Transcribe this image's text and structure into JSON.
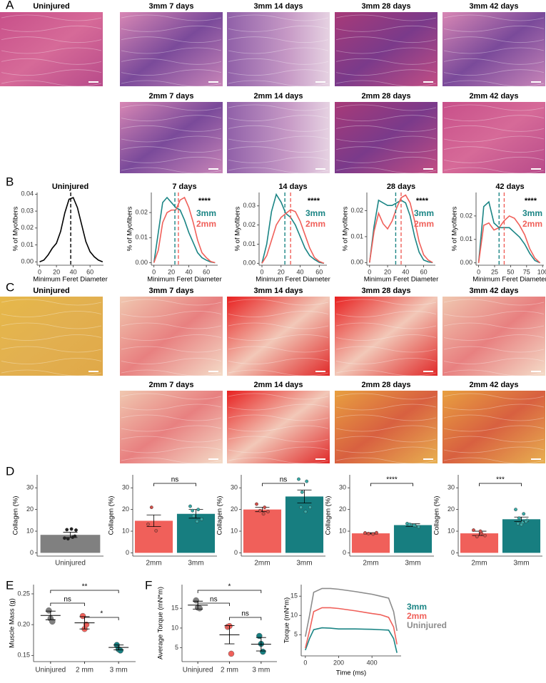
{
  "panel_labels": [
    "A",
    "B",
    "C",
    "D",
    "E",
    "F"
  ],
  "he_images": {
    "titles": [
      "Uninjured",
      "3mm 7 days",
      "3mm 14 days",
      "3mm 28 days",
      "3mm 42 days",
      "2mm 7 days",
      "2mm 14 days",
      "2mm 28 days",
      "2mm 42 days"
    ]
  },
  "ps_images": {
    "titles": [
      "Uninjured",
      "3mm 7 days",
      "3mm 14 days",
      "3mm 28 days",
      "3mm 42 days",
      "2mm 7 days",
      "2mm 14 days",
      "2mm 28 days",
      "2mm 42 days"
    ]
  },
  "chart_data": [
    {
      "type": "density",
      "title": "Uninjured",
      "x_label": "Minimum Feret Diameter",
      "y_label": "% of Myofibers",
      "x": [
        0,
        5,
        10,
        15,
        20,
        25,
        30,
        35,
        40,
        45,
        50,
        55,
        60,
        65,
        70,
        75
      ],
      "series": [
        {
          "color": "#000000",
          "values": [
            0,
            0.001,
            0.004,
            0.008,
            0.011,
            0.018,
            0.029,
            0.037,
            0.038,
            0.032,
            0.022,
            0.012,
            0.006,
            0.003,
            0.001,
            0
          ],
          "mean": 37
        }
      ],
      "xlim": [
        -3,
        76
      ],
      "xticks": [
        0,
        20,
        40,
        60
      ],
      "ylim": [
        -0.002,
        0.041
      ],
      "yticks": [
        {
          "value": 0,
          "label": "0.00"
        },
        0.01,
        0.02,
        0.03,
        0.04
      ]
    },
    {
      "type": "density",
      "title": "7 days",
      "x_label": "Minimum Feret Diameter",
      "y_label": "% of Myofibers",
      "annotation": "****",
      "x": [
        0,
        5,
        10,
        15,
        20,
        25,
        30,
        35,
        40,
        45,
        50,
        55,
        60,
        65,
        70
      ],
      "series": [
        {
          "name": "3mm",
          "color": "#1b8585",
          "values": [
            0,
            0.012,
            0.024,
            0.026,
            0.024,
            0.022,
            0.021,
            0.017,
            0.012,
            0.008,
            0.004,
            0.002,
            0.001,
            0.0003,
            0
          ],
          "mean": 24
        },
        {
          "name": "2mm",
          "color": "#f0605a",
          "values": [
            0,
            0.005,
            0.016,
            0.02,
            0.021,
            0.021,
            0.025,
            0.026,
            0.022,
            0.016,
            0.009,
            0.004,
            0.002,
            0.0005,
            0
          ],
          "mean": 28
        }
      ],
      "xlim": [
        -3,
        73
      ],
      "xticks": [
        0,
        20,
        40,
        60
      ],
      "ylim": [
        -0.001,
        0.028
      ],
      "yticks": [
        {
          "value": 0,
          "label": "0.00"
        },
        0.01,
        0.02
      ]
    },
    {
      "type": "density",
      "title": "14 days",
      "x_label": "Minimum Feret Diameter",
      "y_label": "% of Myofibers",
      "annotation": "****",
      "x": [
        0,
        5,
        10,
        15,
        20,
        25,
        30,
        35,
        40,
        45,
        50,
        55,
        60,
        65
      ],
      "series": [
        {
          "name": "3mm",
          "color": "#1b8585",
          "values": [
            0,
            0.01,
            0.027,
            0.036,
            0.032,
            0.026,
            0.024,
            0.02,
            0.014,
            0.008,
            0.004,
            0.002,
            0.0005,
            0
          ],
          "mean": 24
        },
        {
          "name": "2mm",
          "color": "#f0605a",
          "values": [
            0,
            0.004,
            0.012,
            0.02,
            0.024,
            0.026,
            0.028,
            0.027,
            0.022,
            0.015,
            0.008,
            0.003,
            0.001,
            0
          ],
          "mean": 30
        }
      ],
      "xlim": [
        -3,
        68
      ],
      "xticks": [
        0,
        20,
        40,
        60
      ],
      "ylim": [
        -0.001,
        0.037
      ],
      "yticks": [
        {
          "value": 0,
          "label": "0.00"
        },
        0.01,
        0.02,
        0.03
      ]
    },
    {
      "type": "density",
      "title": "28 days",
      "x_label": "Minimum Feret Diameter",
      "y_label": "% of Myofibers",
      "annotation": "****",
      "x": [
        0,
        5,
        10,
        15,
        20,
        25,
        30,
        35,
        40,
        45,
        50,
        55,
        60,
        65,
        70
      ],
      "series": [
        {
          "name": "3mm",
          "color": "#1b8585",
          "values": [
            0,
            0.014,
            0.024,
            0.023,
            0.022,
            0.022,
            0.023,
            0.024,
            0.023,
            0.018,
            0.01,
            0.004,
            0.001,
            0.0003,
            0
          ],
          "mean": 29
        },
        {
          "name": "2mm",
          "color": "#f0605a",
          "values": [
            0,
            0.012,
            0.019,
            0.015,
            0.013,
            0.016,
            0.021,
            0.025,
            0.026,
            0.023,
            0.016,
            0.008,
            0.003,
            0.001,
            0
          ],
          "mean": 35
        }
      ],
      "xlim": [
        -3,
        73
      ],
      "xticks": [
        0,
        20,
        40,
        60
      ],
      "ylim": [
        -0.001,
        0.027
      ],
      "yticks": [
        {
          "value": 0,
          "label": "0.00"
        },
        0.01,
        0.02
      ]
    },
    {
      "type": "density",
      "title": "42 days",
      "x_label": "Minimum Feret Diameter",
      "y_label": "% of Myofibers",
      "annotation": "****",
      "x": [
        0,
        8,
        16,
        24,
        32,
        40,
        48,
        56,
        64,
        72,
        80,
        88,
        96
      ],
      "series": [
        {
          "name": "3mm",
          "color": "#1b8585",
          "values": [
            0,
            0.024,
            0.026,
            0.017,
            0.015,
            0.015,
            0.015,
            0.013,
            0.011,
            0.008,
            0.004,
            0.001,
            0
          ],
          "mean": 32
        },
        {
          "name": "2mm",
          "color": "#f0605a",
          "values": [
            0,
            0.016,
            0.017,
            0.014,
            0.015,
            0.018,
            0.02,
            0.019,
            0.016,
            0.012,
            0.006,
            0.002,
            0
          ],
          "mean": 40
        }
      ],
      "xlim": [
        -4,
        102
      ],
      "xticks": [
        0,
        25,
        50,
        75,
        100
      ],
      "ylim": [
        -0.001,
        0.03
      ],
      "yticks": [
        {
          "value": 0,
          "label": "0.00"
        },
        0.01,
        0.02
      ]
    },
    {
      "type": "bar",
      "y_label": "Collagen (%)",
      "categories": [
        "Uninjured"
      ],
      "values": [
        8.3
      ],
      "errors": [
        1.2
      ],
      "points": [
        [
          6.8,
          7.2,
          6.5,
          10.5,
          11,
          10.7,
          7.7
        ]
      ],
      "colors": [
        "#808080"
      ],
      "point_colors": [
        "#222222"
      ],
      "ylim": [
        -1.5,
        36
      ],
      "yticks": [
        0,
        10,
        20,
        30
      ],
      "brackets": []
    },
    {
      "type": "bar",
      "y_label": "Collagen (%)",
      "categories": [
        "2mm",
        "3mm"
      ],
      "values": [
        14.8,
        18
      ],
      "errors": [
        2.7,
        2
      ],
      "points": [
        [
          13.2,
          10.2,
          21
        ],
        [
          21.5,
          20,
          17,
          15.5,
          14.5,
          19.5
        ]
      ],
      "colors": [
        "#f0605a",
        "#177e80"
      ],
      "point_colors": [
        "#d0504a",
        "#3aa9a6"
      ],
      "ylim": [
        -1.5,
        36
      ],
      "yticks": [
        0,
        10,
        20,
        30
      ],
      "brackets": [
        {
          "groups": [
            0,
            1
          ],
          "label": "ns"
        }
      ]
    },
    {
      "type": "bar",
      "y_label": "Collagen (%)",
      "categories": [
        "2mm",
        "3mm"
      ],
      "values": [
        20,
        26
      ],
      "errors": [
        1,
        3
      ],
      "points": [
        [
          22.5,
          21,
          19.5,
          19,
          18
        ],
        [
          34,
          33,
          28,
          21,
          19,
          21
        ]
      ],
      "colors": [
        "#f0605a",
        "#177e80"
      ],
      "point_colors": [
        "#d0504a",
        "#3aa9a6"
      ],
      "ylim": [
        -1.5,
        36
      ],
      "yticks": [
        0,
        10,
        20,
        30
      ],
      "brackets": [
        {
          "groups": [
            0,
            1
          ],
          "label": "ns"
        }
      ]
    },
    {
      "type": "bar",
      "y_label": "Collagen (%)",
      "categories": [
        "2mm",
        "3mm"
      ],
      "values": [
        9,
        12.8
      ],
      "errors": [
        0.3,
        0.6
      ],
      "points": [
        [
          9.2,
          8.7,
          8.9,
          9.3
        ],
        [
          13.5,
          12.5,
          13,
          12,
          12.7,
          13.1
        ]
      ],
      "colors": [
        "#f0605a",
        "#177e80"
      ],
      "point_colors": [
        "#d0504a",
        "#3aa9a6"
      ],
      "ylim": [
        -1.5,
        36
      ],
      "yticks": [
        0,
        10,
        20,
        30
      ],
      "brackets": [
        {
          "groups": [
            0,
            1
          ],
          "label": "****"
        }
      ]
    },
    {
      "type": "bar",
      "y_label": "Collagen (%)",
      "categories": [
        "2mm",
        "3mm"
      ],
      "values": [
        9,
        15.5
      ],
      "errors": [
        1,
        1
      ],
      "points": [
        [
          10.5,
          9,
          7.5,
          8,
          10
        ],
        [
          20,
          18,
          16,
          15,
          14,
          13.5,
          14.5,
          13
        ]
      ],
      "colors": [
        "#f0605a",
        "#177e80"
      ],
      "point_colors": [
        "#d0504a",
        "#3aa9a6"
      ],
      "ylim": [
        -1.5,
        36
      ],
      "yticks": [
        0,
        10,
        20,
        30
      ],
      "brackets": [
        {
          "groups": [
            0,
            1
          ],
          "label": "***"
        }
      ]
    },
    {
      "type": "dot",
      "y_label": "Muscle Mass (g)",
      "categories": [
        "Uninjured",
        "2 mm",
        "3 mm"
      ],
      "values": [
        0.215,
        0.203,
        0.163
      ],
      "errors": [
        0.007,
        0.01,
        0.004
      ],
      "points": [
        [
          0.223,
          0.21,
          0.205
        ],
        [
          0.214,
          0.193,
          0.2
        ],
        [
          0.167,
          0.16,
          0.158
        ]
      ],
      "colors": [
        "#808080",
        "#f0605a",
        "#177e80"
      ],
      "ylim": [
        0.14,
        0.265
      ],
      "yticks": [
        0.15,
        {
          "value": 0.2,
          "label": "0.20"
        },
        0.25
      ],
      "brackets": [
        {
          "groups": [
            0,
            2
          ],
          "label": "**"
        },
        {
          "groups": [
            0,
            1
          ],
          "label": "ns"
        },
        {
          "groups": [
            1,
            2
          ],
          "label": "*"
        }
      ]
    },
    {
      "type": "dot",
      "y_label": "Average Torque (mN*m)",
      "categories": [
        "Uninjured",
        "2 mm",
        "3 mm"
      ],
      "values": [
        15.8,
        8.3,
        5.9
      ],
      "errors": [
        1,
        2.3,
        1.7
      ],
      "points": [
        [
          17,
          15.2,
          15
        ],
        [
          10.3,
          10.5,
          3.5
        ],
        [
          8,
          6,
          4
        ]
      ],
      "colors": [
        "#808080",
        "#f0605a",
        "#177e80"
      ],
      "ylim": [
        1.5,
        21
      ],
      "yticks": [
        5,
        10,
        15
      ],
      "brackets": [
        {
          "groups": [
            0,
            2
          ],
          "label": "*"
        },
        {
          "groups": [
            0,
            1
          ],
          "label": "ns"
        },
        {
          "groups": [
            1,
            2
          ],
          "label": "ns"
        }
      ]
    },
    {
      "type": "line",
      "x_label": "Time (ms)",
      "y_label": "Torque (mN*m)",
      "x": [
        0,
        25,
        50,
        100,
        150,
        200,
        300,
        400,
        450,
        500,
        530,
        550
      ],
      "series": [
        {
          "name": "3mm",
          "color": "#1b8585",
          "values": [
            1,
            4,
            6.3,
            6.8,
            6.7,
            6.5,
            6.5,
            6.4,
            6.3,
            6.2,
            4,
            0.3
          ]
        },
        {
          "name": "2mm",
          "color": "#f0605a",
          "values": [
            1.5,
            6,
            11,
            12,
            12,
            11.8,
            11.2,
            10.5,
            10.2,
            9.5,
            7,
            2.5
          ]
        },
        {
          "name": "Uninjured",
          "color": "#8c8c8c",
          "values": [
            4.5,
            10,
            16,
            17,
            17,
            16.8,
            16.2,
            15.5,
            15,
            14.5,
            11,
            6
          ]
        }
      ],
      "xlim": [
        -25,
        575
      ],
      "xticks": [
        0,
        200,
        400
      ],
      "ylim": [
        -0.5,
        18
      ],
      "yticks": [
        5,
        10,
        15
      ]
    }
  ]
}
